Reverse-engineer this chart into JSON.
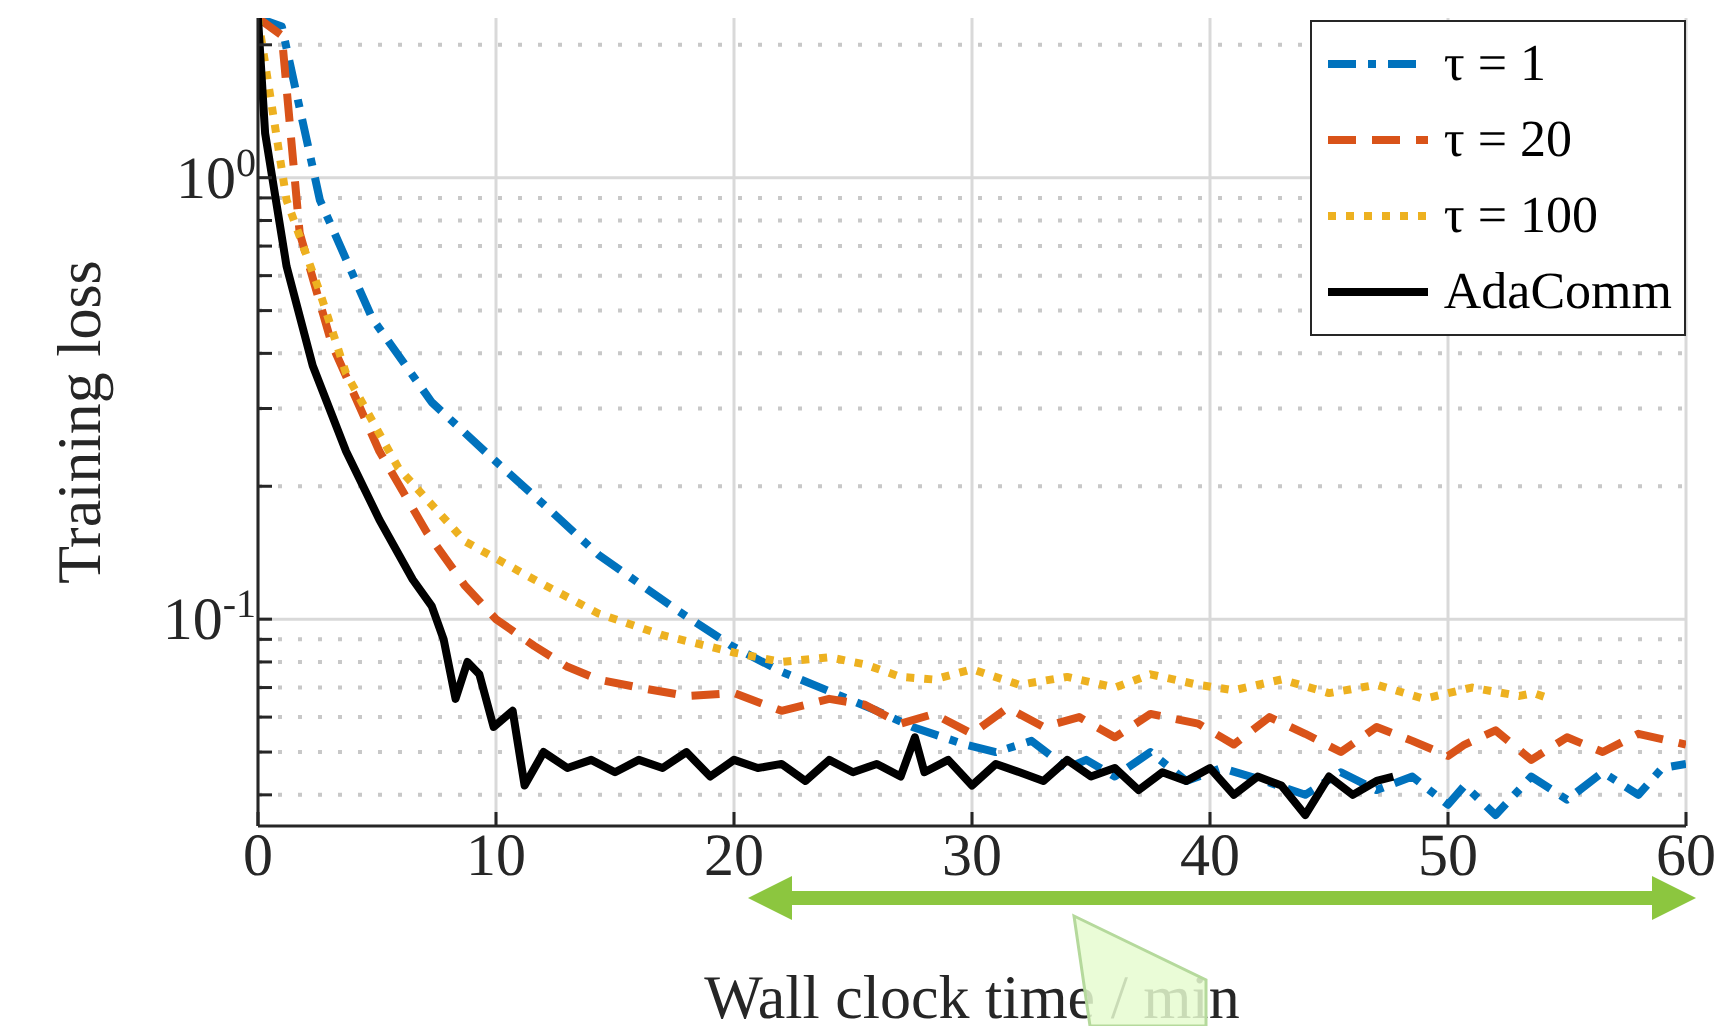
{
  "chart_data": {
    "type": "line",
    "xlabel": "Wall clock time / min",
    "ylabel": "Training loss",
    "xlim": [
      0,
      60
    ],
    "xticks": [
      0,
      10,
      20,
      30,
      40,
      50,
      60
    ],
    "ylim": [
      0.034,
      2.3
    ],
    "log": "y",
    "yticks": [
      {
        "value": 0.04,
        "label": null
      },
      {
        "value": 0.05,
        "label": null
      },
      {
        "value": 0.06,
        "label": null
      },
      {
        "value": 0.07,
        "label": null
      },
      {
        "value": 0.08,
        "label": null
      },
      {
        "value": 0.09,
        "label": null
      },
      {
        "value": 0.1,
        "label": "10$^{-1}$"
      },
      {
        "value": 0.2,
        "label": null
      },
      {
        "value": 0.3,
        "label": null
      },
      {
        "value": 0.4,
        "label": null
      },
      {
        "value": 0.5,
        "label": null
      },
      {
        "value": 0.6,
        "label": null
      },
      {
        "value": 0.7,
        "label": null
      },
      {
        "value": 0.8,
        "label": null
      },
      {
        "value": 0.9,
        "label": null
      },
      {
        "value": 1,
        "label": "10$^{0}$"
      },
      {
        "value": 2,
        "label": null
      }
    ],
    "grid": true,
    "legend": "top right",
    "series": [
      {
        "name": "τ = 1",
        "color": "#0072bd",
        "line_style": "dashdot",
        "x": [
          0,
          1,
          2.6,
          4.8,
          7.3,
          9.9,
          12.1,
          14.3,
          17.7,
          19.9,
          22,
          24.2,
          26,
          27.5,
          29.7,
          31,
          32.5,
          34,
          34.8,
          36,
          37.5,
          39,
          40.5,
          42.3,
          44,
          45.5,
          47,
          48.5,
          50,
          50.7,
          52,
          53.5,
          55,
          56.5,
          58,
          59,
          60
        ],
        "values": [
          2.3,
          2.2,
          0.89,
          0.48,
          0.31,
          0.23,
          0.18,
          0.14,
          0.104,
          0.087,
          0.076,
          0.068,
          0.062,
          0.057,
          0.052,
          0.05,
          0.053,
          0.046,
          0.048,
          0.044,
          0.05,
          0.043,
          0.046,
          0.043,
          0.04,
          0.045,
          0.041,
          0.044,
          0.038,
          0.042,
          0.036,
          0.044,
          0.039,
          0.045,
          0.04,
          0.046,
          0.047
        ]
      },
      {
        "name": "τ = 20",
        "color": "#d95319",
        "line_style": "dashed",
        "x": [
          0,
          1,
          1.75,
          3.1,
          5.1,
          7.1,
          8.7,
          10,
          11.6,
          13,
          14.3,
          16,
          18,
          20,
          22,
          24,
          25.5,
          27,
          28.4,
          30,
          31.5,
          33,
          34.5,
          36,
          37.5,
          39.5,
          41,
          42.5,
          44,
          45.5,
          47,
          48.5,
          50,
          50.7,
          52,
          53.5,
          55,
          56.5,
          58,
          60
        ],
        "values": [
          2.3,
          2.1,
          0.75,
          0.42,
          0.24,
          0.157,
          0.119,
          0.1,
          0.087,
          0.078,
          0.073,
          0.07,
          0.067,
          0.068,
          0.062,
          0.066,
          0.064,
          0.058,
          0.061,
          0.055,
          0.063,
          0.057,
          0.06,
          0.054,
          0.061,
          0.058,
          0.052,
          0.06,
          0.055,
          0.05,
          0.057,
          0.053,
          0.049,
          0.052,
          0.056,
          0.048,
          0.054,
          0.05,
          0.055,
          0.052
        ]
      },
      {
        "name": "τ = 100",
        "color": "#edb120",
        "line_style": "dotted",
        "x": [
          0,
          1.2,
          2.6,
          3.7,
          5.9,
          8.7,
          11.6,
          14.3,
          17,
          20,
          22,
          24,
          25.5,
          27,
          28.4,
          30,
          32,
          34,
          36,
          37.5,
          39.5,
          41,
          43,
          45,
          47,
          49,
          51,
          53,
          53.6,
          54.3
        ],
        "values": [
          2.3,
          0.89,
          0.55,
          0.36,
          0.22,
          0.15,
          0.123,
          0.103,
          0.092,
          0.084,
          0.08,
          0.082,
          0.079,
          0.074,
          0.073,
          0.077,
          0.071,
          0.074,
          0.07,
          0.075,
          0.071,
          0.069,
          0.073,
          0.068,
          0.071,
          0.066,
          0.07,
          0.067,
          0.068,
          0.066
        ]
      },
      {
        "name": "AdaComm",
        "color": "#000000",
        "line_style": "solid",
        "x": [
          0,
          0.3,
          1.2,
          2.3,
          3.7,
          5.1,
          6.5,
          7.3,
          7.8,
          8.3,
          8.8,
          9.3,
          9.9,
          10.7,
          11.2,
          12,
          13,
          14,
          15,
          16,
          17,
          18,
          19,
          20,
          21,
          22,
          23,
          24,
          25,
          26,
          27,
          27.6,
          28,
          29,
          30,
          31,
          32,
          33,
          34,
          35,
          36,
          37,
          38,
          39,
          40,
          41,
          42,
          43,
          44,
          45,
          46,
          47,
          47.7
        ],
        "values": [
          2.3,
          1.26,
          0.63,
          0.375,
          0.24,
          0.168,
          0.123,
          0.107,
          0.09,
          0.066,
          0.08,
          0.075,
          0.057,
          0.062,
          0.042,
          0.05,
          0.046,
          0.048,
          0.045,
          0.048,
          0.046,
          0.05,
          0.044,
          0.048,
          0.046,
          0.047,
          0.043,
          0.048,
          0.045,
          0.047,
          0.044,
          0.054,
          0.045,
          0.048,
          0.042,
          0.047,
          0.045,
          0.043,
          0.048,
          0.044,
          0.046,
          0.041,
          0.045,
          0.043,
          0.046,
          0.04,
          0.044,
          0.042,
          0.036,
          0.044,
          0.04,
          0.043,
          0.044
        ]
      }
    ]
  }
}
